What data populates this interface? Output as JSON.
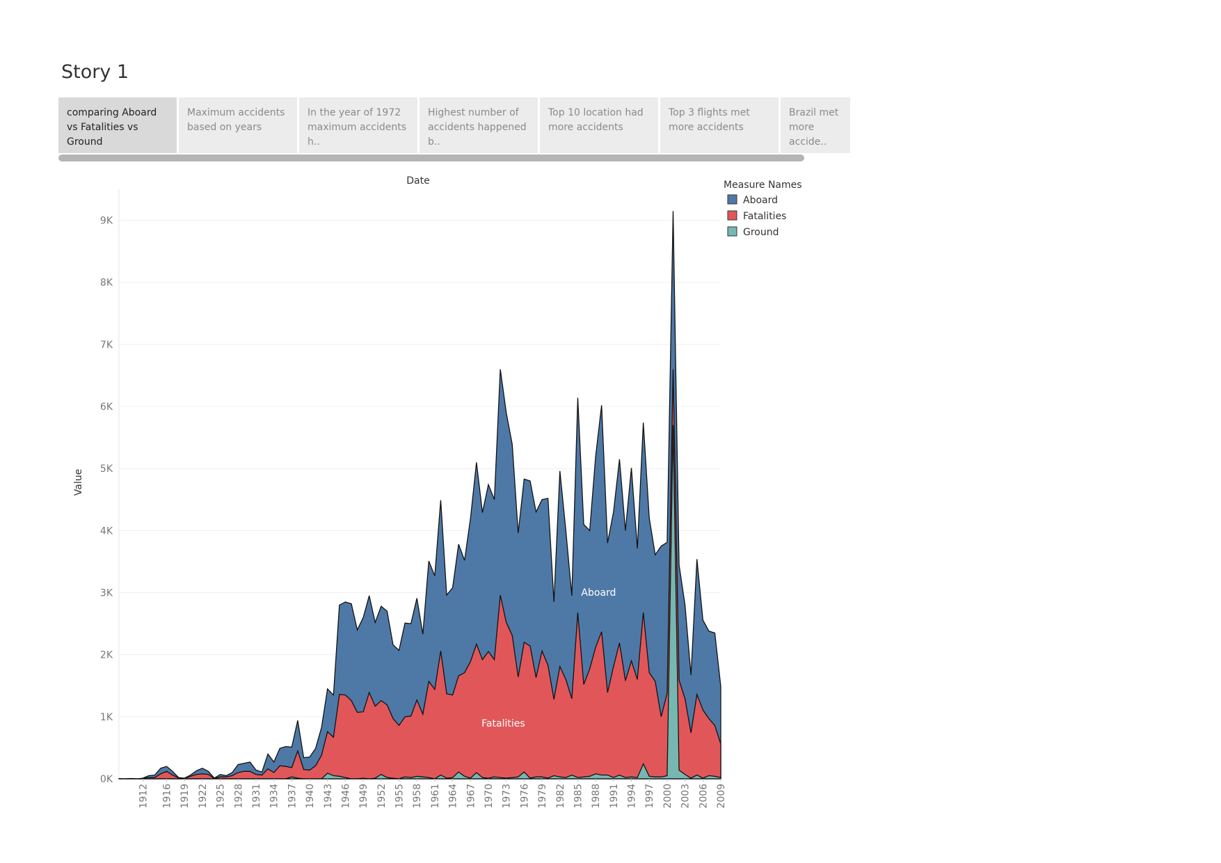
{
  "story": {
    "title": "Story 1",
    "tabs": [
      {
        "label": "comparing  Aboard vs Fatalities vs Ground",
        "active": true
      },
      {
        "label": "Maximum accidents based on years",
        "active": false
      },
      {
        "label": "In the year of  1972 maximum accidents h..",
        "active": false
      },
      {
        "label": " Highest number of accidents happened b..",
        "active": false
      },
      {
        "label": "Top 10  location had more accidents",
        "active": false
      },
      {
        "label": "Top 3 flights met more accidents",
        "active": false
      },
      {
        "label": "Brazil  met more accide..",
        "active": false
      }
    ]
  },
  "chart_data": {
    "type": "area",
    "title": "Date",
    "xlabel": "Date",
    "ylabel": "Value",
    "ylim": [
      0,
      9500
    ],
    "yticks": [
      0,
      1000,
      2000,
      3000,
      4000,
      5000,
      6000,
      7000,
      8000,
      9000
    ],
    "ytick_labels": [
      "0K",
      "1K",
      "2K",
      "3K",
      "4K",
      "5K",
      "6K",
      "7K",
      "8K",
      "9K"
    ],
    "xticks": [
      1912,
      1916,
      1919,
      1922,
      1925,
      1928,
      1931,
      1934,
      1937,
      1940,
      1943,
      1946,
      1949,
      1952,
      1955,
      1958,
      1961,
      1964,
      1967,
      1970,
      1973,
      1976,
      1979,
      1982,
      1985,
      1988,
      1991,
      1994,
      1997,
      2000,
      2003,
      2006,
      2009
    ],
    "legend": {
      "title": "Measure Names",
      "position": "top-right"
    },
    "stacked": false,
    "area_labels": [
      {
        "series": "Aboard",
        "text": "Aboard",
        "x": 1988.5,
        "y": 2950
      },
      {
        "series": "Fatalities",
        "text": "Fatalities",
        "x": 1972.5,
        "y": 840
      }
    ],
    "x": [
      1908,
      1909,
      1910,
      1911,
      1912,
      1913,
      1914,
      1915,
      1916,
      1917,
      1918,
      1919,
      1920,
      1921,
      1922,
      1923,
      1924,
      1925,
      1926,
      1927,
      1928,
      1929,
      1930,
      1931,
      1932,
      1933,
      1934,
      1935,
      1936,
      1937,
      1938,
      1939,
      1940,
      1941,
      1942,
      1943,
      1944,
      1945,
      1946,
      1947,
      1948,
      1949,
      1950,
      1951,
      1952,
      1953,
      1954,
      1955,
      1956,
      1957,
      1958,
      1959,
      1960,
      1961,
      1962,
      1963,
      1964,
      1965,
      1966,
      1967,
      1968,
      1969,
      1970,
      1971,
      1972,
      1973,
      1974,
      1975,
      1976,
      1977,
      1978,
      1979,
      1980,
      1981,
      1982,
      1983,
      1984,
      1985,
      1986,
      1987,
      1988,
      1989,
      1990,
      1991,
      1992,
      1993,
      1994,
      1995,
      1996,
      1997,
      1998,
      1999,
      2000,
      2001,
      2002,
      2003,
      2004,
      2005,
      2006,
      2007,
      2008,
      2009
    ],
    "series": [
      {
        "name": "Aboard",
        "color": "#4e79a7",
        "values": [
          2,
          0,
          5,
          0,
          10,
          50,
          60,
          170,
          200,
          120,
          20,
          10,
          60,
          130,
          170,
          120,
          10,
          70,
          50,
          100,
          230,
          250,
          270,
          140,
          110,
          400,
          270,
          490,
          520,
          510,
          940,
          340,
          350,
          490,
          830,
          1450,
          1350,
          2800,
          2850,
          2820,
          2400,
          2600,
          2950,
          2520,
          2780,
          2700,
          2160,
          2070,
          2510,
          2500,
          2910,
          2330,
          3510,
          3270,
          4490,
          2960,
          3080,
          3780,
          3520,
          4200,
          5100,
          4290,
          4740,
          4500,
          6600,
          5900,
          5390,
          3960,
          4830,
          4800,
          4300,
          4500,
          4520,
          2850,
          4960,
          4000,
          2950,
          6140,
          4100,
          4000,
          5200,
          6020,
          3800,
          4300,
          5150,
          4000,
          5010,
          3710,
          5740,
          4200,
          3610,
          3750,
          3810,
          9150,
          3450,
          2800,
          1670,
          3540,
          2560,
          2380,
          2350,
          1490
        ]
      },
      {
        "name": "Fatalities",
        "color": "#e15759",
        "values": [
          1,
          0,
          2,
          0,
          5,
          20,
          20,
          80,
          120,
          60,
          15,
          8,
          40,
          70,
          80,
          70,
          5,
          30,
          30,
          50,
          100,
          120,
          120,
          70,
          60,
          160,
          100,
          210,
          200,
          180,
          450,
          150,
          140,
          210,
          380,
          760,
          670,
          1360,
          1350,
          1260,
          1070,
          1080,
          1390,
          1170,
          1260,
          1190,
          970,
          860,
          1000,
          1010,
          1270,
          1040,
          1570,
          1440,
          2060,
          1370,
          1350,
          1660,
          1710,
          1890,
          2170,
          1920,
          2050,
          1920,
          2960,
          2520,
          2310,
          1640,
          2200,
          2140,
          1630,
          2060,
          1830,
          1280,
          1810,
          1600,
          1290,
          2680,
          1520,
          1770,
          2120,
          2370,
          1390,
          1810,
          2190,
          1580,
          1900,
          1600,
          2680,
          1710,
          1570,
          1000,
          1380,
          6600,
          1590,
          1290,
          740,
          1360,
          1110,
          970,
          860,
          560
        ]
      },
      {
        "name": "Ground",
        "color": "#76b7b2",
        "values": [
          0,
          0,
          0,
          0,
          0,
          0,
          0,
          0,
          0,
          0,
          0,
          0,
          0,
          0,
          0,
          0,
          0,
          0,
          0,
          0,
          0,
          0,
          0,
          0,
          0,
          0,
          0,
          0,
          0,
          30,
          10,
          0,
          0,
          0,
          0,
          90,
          50,
          40,
          20,
          0,
          0,
          10,
          0,
          10,
          70,
          20,
          10,
          0,
          30,
          20,
          40,
          30,
          20,
          0,
          60,
          10,
          20,
          110,
          40,
          10,
          100,
          20,
          10,
          30,
          20,
          10,
          20,
          30,
          110,
          10,
          30,
          30,
          10,
          50,
          30,
          20,
          60,
          20,
          30,
          40,
          80,
          60,
          60,
          20,
          60,
          20,
          30,
          20,
          240,
          40,
          30,
          30,
          50,
          5700,
          140,
          70,
          10,
          60,
          10,
          50,
          40,
          20
        ]
      }
    ]
  }
}
